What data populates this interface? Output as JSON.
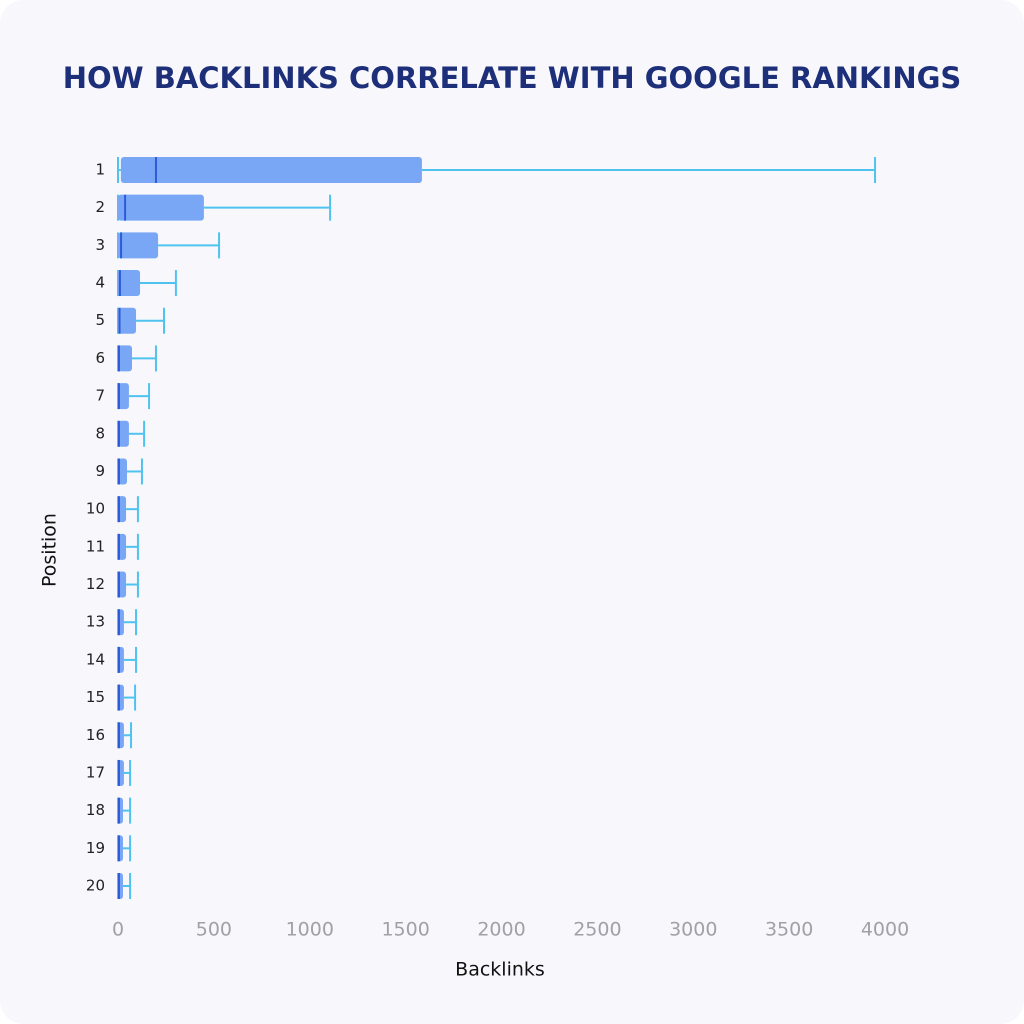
{
  "chart_data": {
    "type": "box",
    "title": "HOW BACKLINKS CORRELATE WITH GOOGLE RANKINGS",
    "x_label": "Backlinks",
    "y_label": "Position",
    "categories": [
      "1",
      "2",
      "3",
      "4",
      "5",
      "6",
      "7",
      "8",
      "9",
      "10",
      "11",
      "12",
      "13",
      "14",
      "15",
      "16",
      "17",
      "18",
      "19",
      "20"
    ],
    "low": [
      0,
      0,
      0,
      0,
      0,
      0,
      0,
      0,
      0,
      0,
      0,
      0,
      0,
      0,
      0,
      0,
      0,
      0,
      0,
      0
    ],
    "q1": [
      15,
      0,
      0,
      0,
      0,
      0,
      0,
      0,
      0,
      0,
      0,
      0,
      0,
      0,
      0,
      0,
      0,
      0,
      0,
      0
    ],
    "median": [
      198,
      37,
      16,
      10,
      8,
      5,
      5,
      5,
      5,
      5,
      5,
      5,
      5,
      5,
      5,
      5,
      5,
      5,
      5,
      5
    ],
    "q3": [
      1585,
      448,
      209,
      115,
      94,
      73,
      57,
      57,
      47,
      42,
      42,
      42,
      31,
      31,
      31,
      31,
      31,
      26,
      26,
      26
    ],
    "high": [
      3948,
      1106,
      527,
      302,
      240,
      198,
      162,
      136,
      125,
      104,
      104,
      104,
      94,
      94,
      89,
      68,
      63,
      63,
      63,
      63
    ],
    "box_color": "#7aa7f5",
    "median_color": "#2d5bd8",
    "whisker_color": "#4fc3f0",
    "xlim": [
      0,
      4000
    ],
    "xticks": [
      0,
      500,
      1000,
      1500,
      2000,
      2500,
      3000,
      3500,
      4000
    ]
  }
}
